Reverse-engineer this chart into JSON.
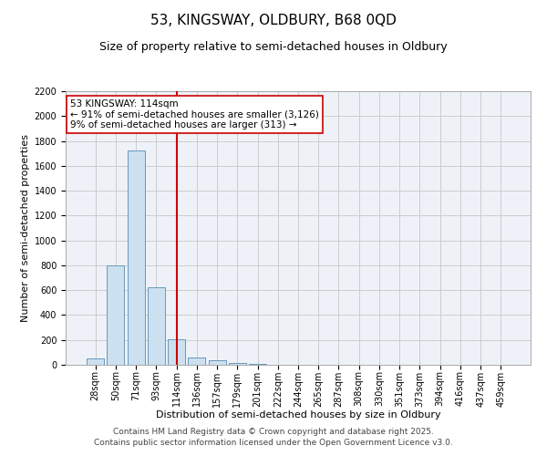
{
  "title": "53, KINGSWAY, OLDBURY, B68 0QD",
  "subtitle": "Size of property relative to semi-detached houses in Oldbury",
  "xlabel": "Distribution of semi-detached houses by size in Oldbury",
  "ylabel": "Number of semi-detached properties",
  "categories": [
    "28sqm",
    "50sqm",
    "71sqm",
    "93sqm",
    "114sqm",
    "136sqm",
    "157sqm",
    "179sqm",
    "201sqm",
    "222sqm",
    "244sqm",
    "265sqm",
    "287sqm",
    "308sqm",
    "330sqm",
    "351sqm",
    "373sqm",
    "394sqm",
    "416sqm",
    "437sqm",
    "459sqm"
  ],
  "values": [
    50,
    800,
    1720,
    620,
    205,
    60,
    40,
    15,
    5,
    0,
    0,
    0,
    0,
    0,
    0,
    0,
    0,
    0,
    0,
    0,
    0
  ],
  "bar_color": "#cce0f0",
  "bar_edge_color": "#6699bb",
  "vline_x_index": 4,
  "vline_color": "#cc0000",
  "annotation_line1": "53 KINGSWAY: 114sqm",
  "annotation_line2": "← 91% of semi-detached houses are smaller (3,126)",
  "annotation_line3": "9% of semi-detached houses are larger (313) →",
  "annotation_box_color": "#cc0000",
  "ylim": [
    0,
    2200
  ],
  "yticks": [
    0,
    200,
    400,
    600,
    800,
    1000,
    1200,
    1400,
    1600,
    1800,
    2000,
    2200
  ],
  "grid_color": "#cccccc",
  "background_color": "#eef2f8",
  "footer_line1": "Contains HM Land Registry data © Crown copyright and database right 2025.",
  "footer_line2": "Contains public sector information licensed under the Open Government Licence v3.0.",
  "title_fontsize": 11,
  "subtitle_fontsize": 9,
  "axis_label_fontsize": 8,
  "tick_fontsize": 7,
  "annotation_fontsize": 7.5,
  "footer_fontsize": 6.5
}
